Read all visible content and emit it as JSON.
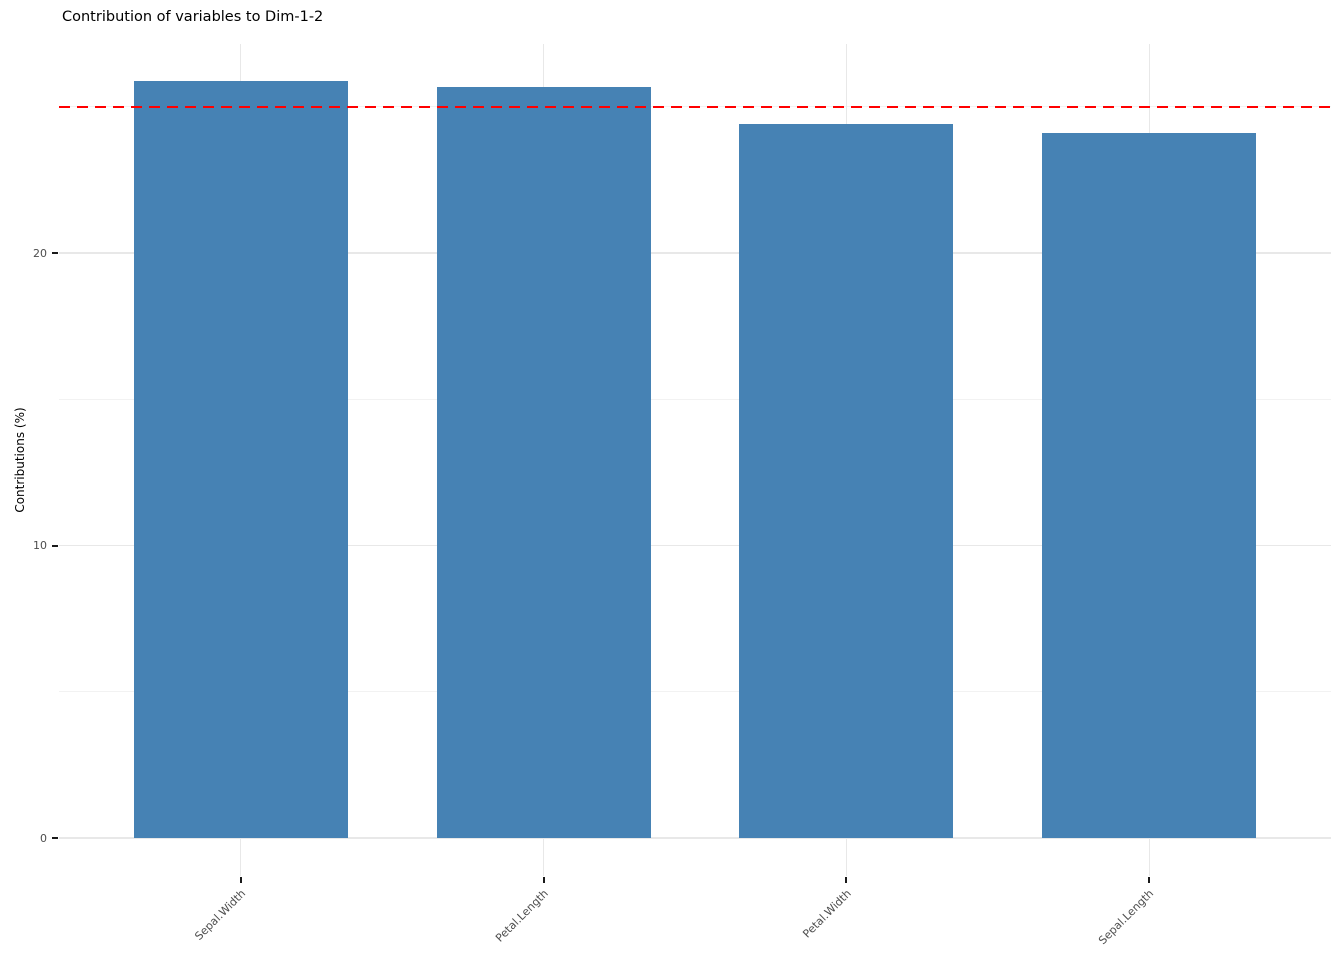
{
  "chart_data": {
    "type": "bar",
    "title": "Contribution of variables to Dim-1-2",
    "categories": [
      "Sepal.Width",
      "Petal.Length",
      "Petal.Width",
      "Sepal.Length"
    ],
    "values": [
      25.88,
      25.66,
      24.4,
      24.1
    ],
    "xlabel": "",
    "ylabel": "Contributions (%)",
    "ylim": [
      0,
      27.15
    ],
    "yticks": [
      0,
      10,
      20
    ],
    "yticks_minor": [
      5,
      15,
      25
    ],
    "grid": true,
    "legend": "none",
    "bar_color": "#4682B4",
    "reference_line": {
      "value": 25,
      "style": "dashed",
      "color": "#FF0000"
    }
  },
  "style": {
    "background": "#FFFFFF",
    "major_grid_color": "#E8E8E8",
    "minor_grid_color": "#F2F2F2",
    "tick_mark_color": "#1A1A1A",
    "axis_text_color": "#4D4D4D",
    "title_color": "#000000"
  }
}
